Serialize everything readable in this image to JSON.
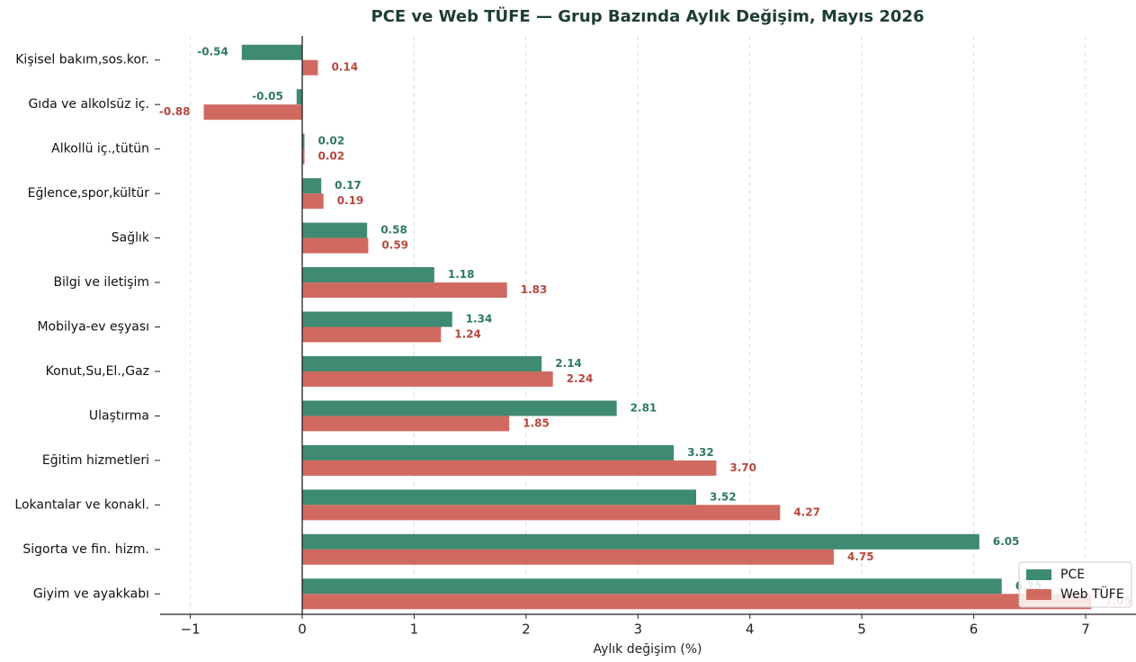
{
  "chart_data": {
    "type": "barh",
    "title": "PCE ve Web TÜFE — Grup Bazında Aylık Değişim, Mayıs 2026",
    "xlabel": "Aylık değişim (%)",
    "categories": [
      "Kişisel bakım,sos.kor.",
      "Gıda ve alkolsüz iç.",
      "Alkollü iç.,tütün",
      "Eğlence,spor,kültür",
      "Sağlık",
      "Bilgi ve iletişim",
      "Mobilya-ev eşyası",
      "Konut,Su,El.,Gaz",
      "Ulaştırma",
      "Eğitim hizmetleri",
      "Lokantalar ve konakl.",
      "Sigorta ve fin. hizm.",
      "Giyim ve ayakkabı"
    ],
    "series": [
      {
        "name": "PCE",
        "color": "#3f8a72",
        "label_color": "#2e7a5f",
        "values": [
          -0.54,
          -0.05,
          0.02,
          0.17,
          0.58,
          1.18,
          1.34,
          2.14,
          2.81,
          3.32,
          3.52,
          6.05,
          6.25
        ],
        "value_labels": [
          "-0.54",
          "-0.05",
          "0.02",
          "0.17",
          "0.58",
          "1.18",
          "1.34",
          "2.14",
          "2.81",
          "3.32",
          "3.52",
          "6.05",
          "6.25"
        ]
      },
      {
        "name": "Web TÜFE",
        "color": "#d06a60",
        "label_color": "#b8473e",
        "values": [
          0.14,
          -0.88,
          0.02,
          0.19,
          0.59,
          1.83,
          1.24,
          2.24,
          1.85,
          3.7,
          4.27,
          4.75,
          7.05
        ],
        "value_labels": [
          "0.14",
          "-0.88",
          "0.02",
          "0.19",
          "0.59",
          "1.83",
          "1.24",
          "2.24",
          "1.85",
          "3.70",
          "4.27",
          "4.75",
          "7.05"
        ]
      }
    ],
    "xlim": [
      -1.27,
      7.45
    ],
    "xticks": [
      {
        "value": -1,
        "label": "−1"
      },
      0,
      1,
      2,
      3,
      4,
      5,
      6,
      7
    ],
    "grid": true,
    "legend": "lower right"
  }
}
